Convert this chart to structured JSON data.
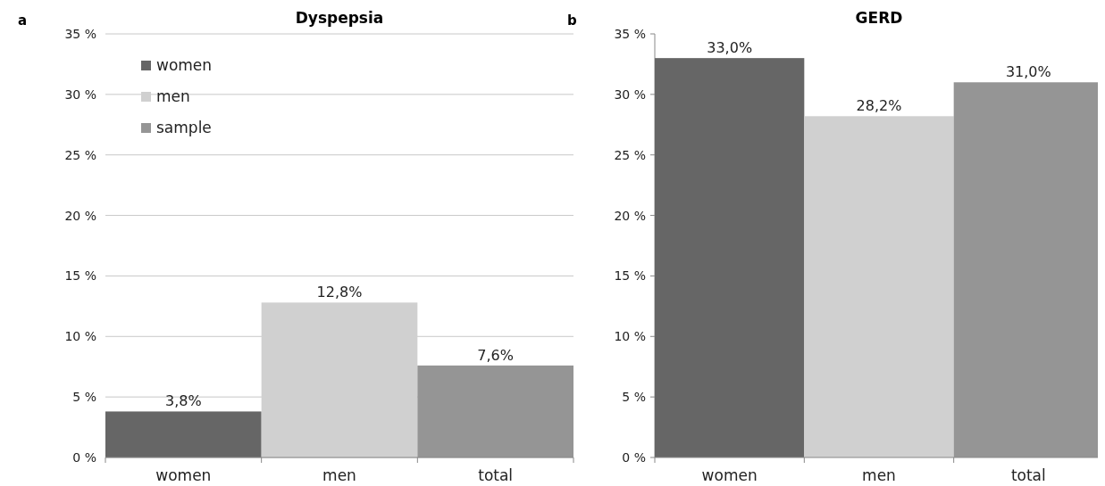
{
  "chart_data": [
    {
      "type": "bar",
      "title": "Dyspepsia",
      "annotations": [
        "a"
      ],
      "categories": [
        "women",
        "men",
        "total"
      ],
      "stacked": true,
      "series": [
        {
          "name": "women",
          "color": "#666666",
          "values": [
            3.8,
            null,
            null
          ],
          "value_labels": [
            "3,8%",
            null,
            null
          ]
        },
        {
          "name": "men",
          "color": "#d0d0d0",
          "values": [
            null,
            12.8,
            null
          ],
          "value_labels": [
            null,
            "12,8%",
            null
          ]
        },
        {
          "name": "sample",
          "color": "#959595",
          "values": [
            null,
            null,
            7.6
          ],
          "value_labels": [
            null,
            null,
            "7,6%"
          ]
        }
      ],
      "ylim": [
        0,
        35
      ],
      "yticks": [
        {
          "value": 0,
          "label": "0 %"
        },
        {
          "value": 5,
          "label": "5 %"
        },
        {
          "value": 10,
          "label": "10 %"
        },
        {
          "value": 15,
          "label": "15 %"
        },
        {
          "value": 20,
          "label": "20 %"
        },
        {
          "value": 25,
          "label": "25 %"
        },
        {
          "value": 30,
          "label": "30 %"
        },
        {
          "value": 35,
          "label": "35 %"
        }
      ],
      "grid": "y",
      "legend": "top left"
    },
    {
      "type": "bar",
      "title": "GERD",
      "annotations": [
        "b"
      ],
      "categories": [
        "women",
        "men",
        "total"
      ],
      "values": [
        33.0,
        28.2,
        31.0
      ],
      "colors": [
        "#666666",
        "#d0d0d0",
        "#959595"
      ],
      "value_labels": [
        "33,0%",
        "28,2%",
        "31,0%"
      ],
      "ylim": [
        0,
        35
      ],
      "yticks": [
        {
          "value": 0,
          "label": "0 %"
        },
        {
          "value": 5,
          "label": "5 %"
        },
        {
          "value": 10,
          "label": "10 %"
        },
        {
          "value": 15,
          "label": "15 %"
        },
        {
          "value": 20,
          "label": "20 %"
        },
        {
          "value": 25,
          "label": "25 %"
        },
        {
          "value": 30,
          "label": "30 %"
        },
        {
          "value": 35,
          "label": "35 %"
        }
      ],
      "grid": false,
      "legend": false
    }
  ]
}
